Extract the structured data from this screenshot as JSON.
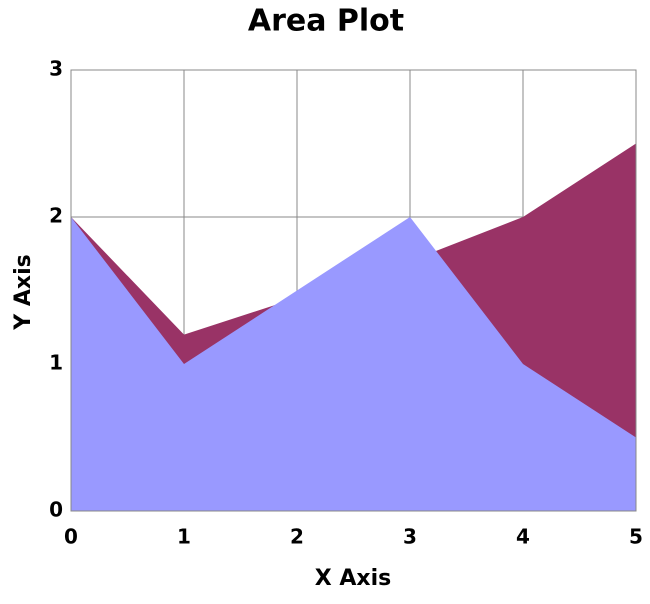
{
  "chart_data": {
    "type": "area",
    "title": "Area Plot",
    "x_label": "X Axis",
    "y_label": "Y Axis",
    "x": [
      0,
      1,
      2,
      3,
      4,
      5
    ],
    "series": [
      {
        "color": "#993366",
        "values": [
          2,
          1.2,
          1.45,
          1.7,
          2,
          2.5
        ]
      },
      {
        "color": "#9999ff",
        "values": [
          2,
          1,
          1.5,
          2,
          1,
          0.5
        ]
      }
    ],
    "xlim": [
      0,
      5
    ],
    "xticks": [
      0,
      1,
      2,
      3,
      4,
      5
    ],
    "ylim": [
      0,
      3
    ],
    "yticks": [
      0,
      1,
      2,
      3
    ],
    "grid": true
  }
}
